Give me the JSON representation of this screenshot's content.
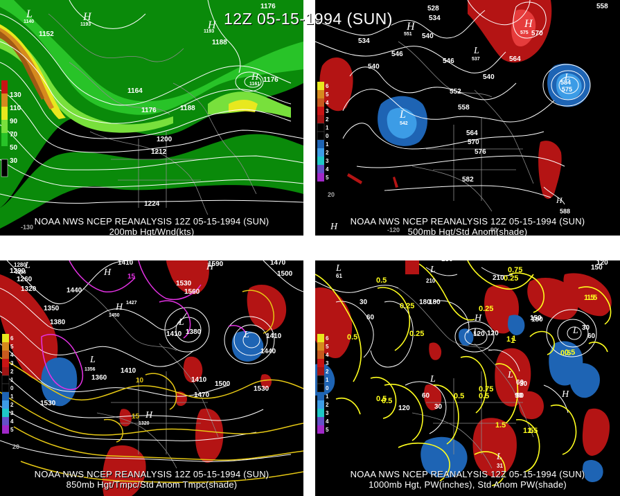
{
  "main_title": "12Z 05-15-1994 (SUN)",
  "colors": {
    "background": "#000000",
    "contour": "#ffffff",
    "wind_green_dark": "#0a8a0a",
    "wind_green_mid": "#28c328",
    "wind_green_light": "#78e03c",
    "wind_yellow": "#e8e81e",
    "wind_orange": "#d68a1e",
    "wind_brown": "#a05a14",
    "anom_red": "#b41414",
    "anom_red_light": "#e63c3c",
    "anom_blue": "#1e64b4",
    "anom_blue_light": "#3c9ce6",
    "temp_line": "#e6c814",
    "temp_line_magenta": "#e632e6",
    "pw_line": "#ffff1e",
    "map_lines": "#8c8c8c"
  },
  "panels": [
    {
      "id": "top-left",
      "caption_line1": "NOAA NWS NCEP REANALYSIS 12Z 05-15-1994 (SUN)",
      "caption_line2": "200mb Hgt/Wnd(kts)",
      "legend": [
        "130",
        "110",
        "90",
        "70",
        "50",
        "30"
      ],
      "contour_labels": [
        "1152",
        "1164",
        "1176",
        "1188",
        "1200",
        "1212",
        "1224",
        "1188",
        "1176",
        "1176"
      ],
      "hl_labels": [
        "L",
        "H",
        "H",
        "H",
        "L"
      ],
      "small_labels": [
        "1140",
        "1193",
        "1193",
        "1161",
        "1161"
      ],
      "lon_label": "-130"
    },
    {
      "id": "top-right",
      "caption_line1": "NOAA NWS NCEP REANALYSIS 12Z 05-15-1994 (SUN)",
      "caption_line2": "500mb Hgt/Std Anom(shade)",
      "legend": [
        "6",
        "5",
        "4",
        "3",
        "2",
        "1",
        "0",
        "1",
        "2",
        "3",
        "4",
        "5"
      ],
      "contour_labels": [
        "528",
        "534",
        "534",
        "540",
        "546",
        "540",
        "546",
        "552",
        "558",
        "564",
        "570",
        "576",
        "582",
        "564",
        "570",
        "558",
        "588",
        "540"
      ],
      "hl_labels": [
        "H",
        "H",
        "L",
        "L",
        "H",
        "L"
      ],
      "small_labels": [
        "551",
        "537",
        "575",
        "542",
        "584",
        "575"
      ],
      "lon_labels": [
        "20",
        "-120",
        "-90"
      ],
      "corner_labels": [
        "H"
      ]
    },
    {
      "id": "bottom-left",
      "caption_line1": "NOAA NWS NCEP REANALYSIS 12Z 05-15-1994 (SUN)",
      "caption_line2": "850mb Hgt/Tmpc/Std Anom Tmpc(shade)",
      "legend": [
        "6",
        "5",
        "4",
        "3",
        "2",
        "1",
        "0",
        "1",
        "2",
        "3",
        "4",
        "5"
      ],
      "contour_labels": [
        "1410",
        "1410",
        "1290",
        "1260",
        "1320",
        "1350",
        "1380",
        "1440",
        "1530",
        "1560",
        "1590",
        "1470",
        "1500",
        "1380",
        "1410",
        "1440",
        "1360",
        "1410",
        "1410",
        "1470",
        "1500",
        "1530",
        "1530",
        "1410",
        "15",
        "10",
        "20",
        "15"
      ],
      "hl_labels": [
        "L",
        "H",
        "H",
        "L",
        "L",
        "H",
        "L",
        "H"
      ],
      "small_labels": [
        "1280",
        "1226",
        "1427",
        "1450",
        "1356",
        "1320"
      ],
      "lon_labels": [
        "20"
      ]
    },
    {
      "id": "bottom-right",
      "caption_line1": "NOAA NWS NCEP REANALYSIS 12Z 05-15-1994 (SUN)",
      "caption_line2": "1000mb Hgt, PW(inches), Std Anom PW(shade)",
      "legend": [
        "6",
        "5",
        "4",
        "3",
        "2",
        "1",
        "0",
        "1",
        "2",
        "3",
        "4",
        "5"
      ],
      "contour_labels": [
        "150",
        "150",
        "120",
        "30",
        "60",
        "0.5",
        "0.25",
        "180",
        "120",
        "30",
        "60",
        "0.5",
        "0.25",
        "1.5",
        "150",
        "30",
        "60",
        "0.5",
        "0.5",
        "0.75",
        "1",
        "1.5",
        "1.5",
        "90",
        "120",
        "180",
        "0.5",
        "1",
        "0.25",
        "0.75",
        "90",
        "30",
        "60",
        "0.5",
        "1.5",
        "1.5",
        "0.5",
        "1",
        "0.5",
        "150",
        "120",
        "210",
        "0.25"
      ],
      "hl_labels": [
        "L",
        "L",
        "L",
        "H",
        "L",
        "H",
        "L",
        "L",
        "L"
      ],
      "small_labels": [
        "61",
        "210",
        "31"
      ],
      "lon_labels": []
    }
  ]
}
